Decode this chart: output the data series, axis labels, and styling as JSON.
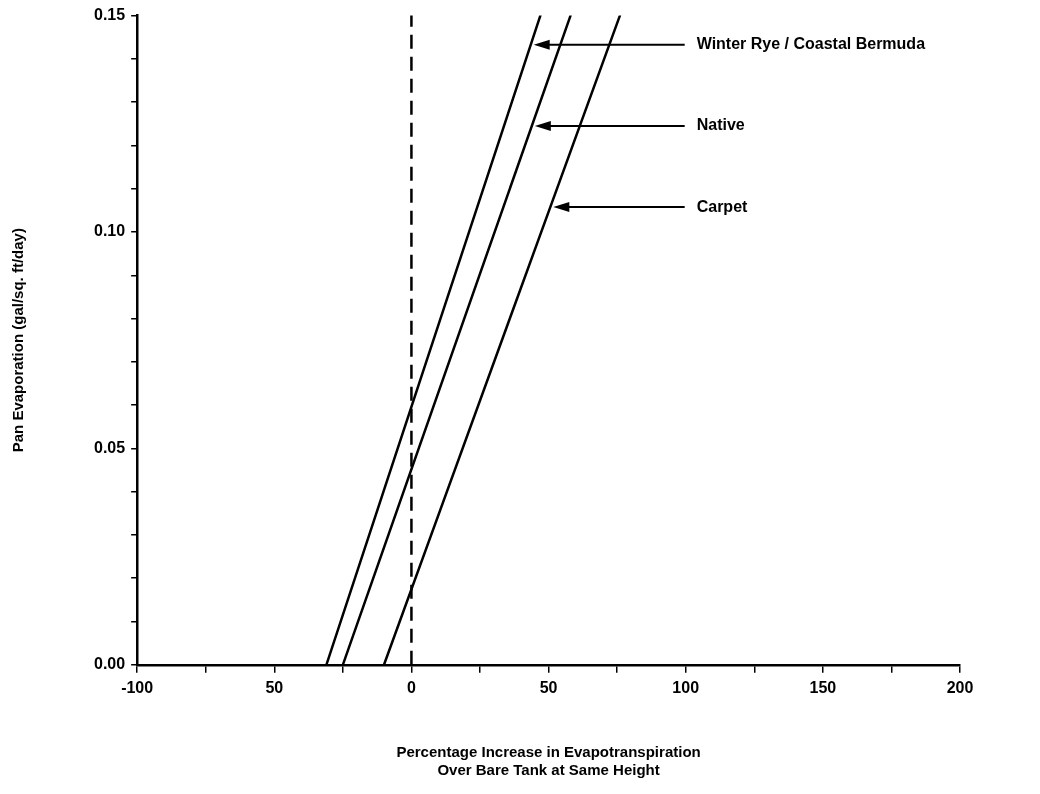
{
  "chart_data": {
    "type": "line",
    "xlabel": "Percentage Increase in Evapotranspiration\nOver Bare Tank at Same Height",
    "ylabel": "Pan Evaporation (gal/sq. ft/day)",
    "xlim": [
      -100,
      200
    ],
    "xticks": [
      -100,
      {
        "value": -75,
        "label": null
      },
      {
        "value": -50,
        "label": "50"
      },
      {
        "value": -25,
        "label": null
      },
      0,
      {
        "value": 25,
        "label": null
      },
      50,
      {
        "value": 75,
        "label": null
      },
      100,
      {
        "value": 125,
        "label": null
      },
      150,
      {
        "value": 175,
        "label": null
      },
      200
    ],
    "ylim": [
      0,
      0.15
    ],
    "yticks": [
      {
        "value": 0,
        "label": "0.00"
      },
      {
        "value": 0.01,
        "label": null
      },
      {
        "value": 0.02,
        "label": null
      },
      {
        "value": 0.03,
        "label": null
      },
      {
        "value": 0.04,
        "label": null
      },
      {
        "value": 0.05,
        "label": "0.05"
      },
      {
        "value": 0.06,
        "label": null
      },
      {
        "value": 0.07,
        "label": null
      },
      {
        "value": 0.08,
        "label": null
      },
      {
        "value": 0.09,
        "label": null
      },
      {
        "value": 0.1,
        "label": "0.10"
      },
      {
        "value": 0.11,
        "label": null
      },
      {
        "value": 0.12,
        "label": null
      },
      {
        "value": 0.13,
        "label": null
      },
      {
        "value": 0.14,
        "label": null
      },
      {
        "value": 0.15,
        "label": "0.15"
      }
    ],
    "grid": false,
    "legend": false,
    "line_style": "solid",
    "series": [
      {
        "name": "Winter Rye / Coastal Bermuda",
        "color": "#000000",
        "x": [
          -31,
          47
        ],
        "values": [
          0,
          0.15
        ]
      },
      {
        "name": "Native",
        "color": "#000000",
        "x": [
          -25,
          58
        ],
        "values": [
          0,
          0.15
        ]
      },
      {
        "name": "Carpet",
        "color": "#000000",
        "x": [
          -10,
          76
        ],
        "values": [
          0,
          0.15
        ]
      }
    ],
    "ref_lines": [
      {
        "axis": "x",
        "value": 0,
        "line_style": "dashed",
        "color": "#000000"
      }
    ]
  }
}
